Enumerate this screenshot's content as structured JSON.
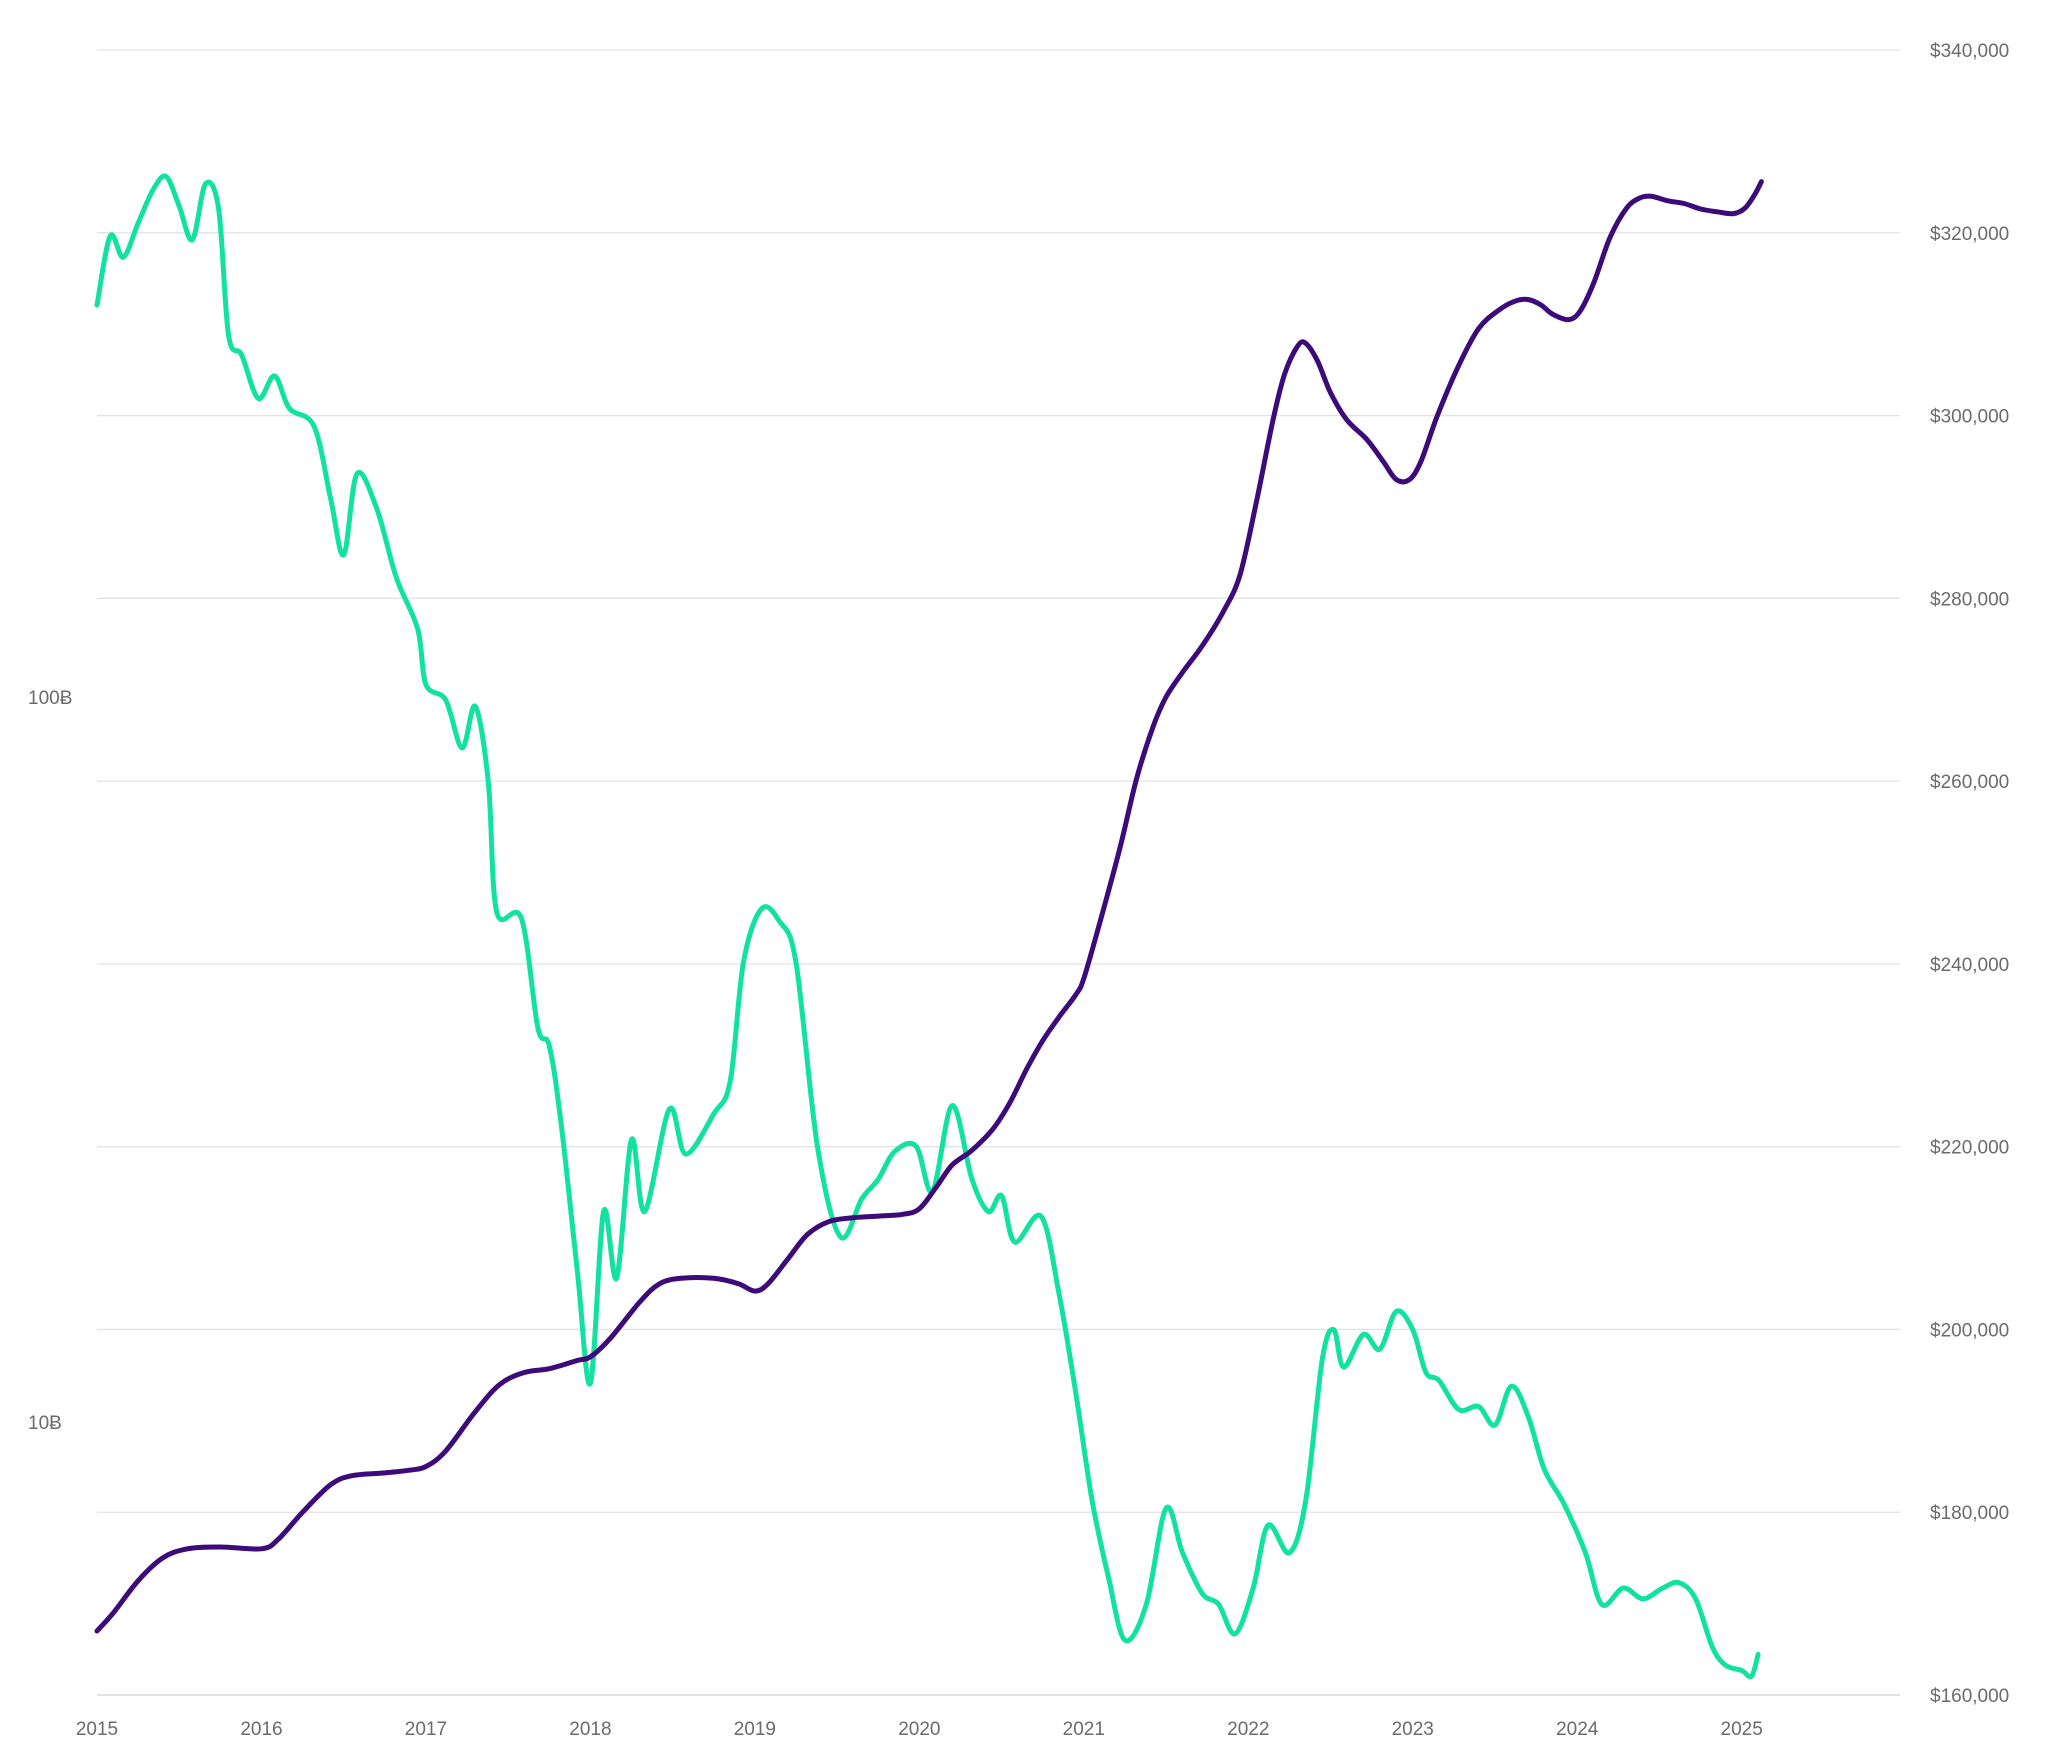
{
  "chart_data": {
    "type": "line",
    "grid": true,
    "legend": "none",
    "x_axis": {
      "range": [
        2015,
        2025.92
      ],
      "ticks": [
        {
          "value": 2015,
          "label": "2015"
        },
        {
          "value": 2016,
          "label": "2016"
        },
        {
          "value": 2017,
          "label": "2017"
        },
        {
          "value": 2018,
          "label": "2018"
        },
        {
          "value": 2019,
          "label": "2019"
        },
        {
          "value": 2020,
          "label": "2020"
        },
        {
          "value": 2021,
          "label": "2021"
        },
        {
          "value": 2022,
          "label": "2022"
        },
        {
          "value": 2023,
          "label": "2023"
        },
        {
          "value": 2024,
          "label": "2024"
        },
        {
          "value": 2025,
          "label": "2025"
        }
      ]
    },
    "y_left": {
      "scale": "log",
      "unit": "Ƀ",
      "range": [
        4.2,
        780
      ],
      "ticks": [
        {
          "value": 10,
          "label": "10Ƀ"
        },
        {
          "value": 100,
          "label": "100Ƀ"
        }
      ]
    },
    "y_right": {
      "scale": "linear",
      "range": [
        160000,
        340000
      ],
      "ticks": [
        {
          "value": 160000,
          "label": "$160,000"
        },
        {
          "value": 180000,
          "label": "$180,000"
        },
        {
          "value": 200000,
          "label": "$200,000"
        },
        {
          "value": 220000,
          "label": "$220,000"
        },
        {
          "value": 240000,
          "label": "$240,000"
        },
        {
          "value": 260000,
          "label": "$260,000"
        },
        {
          "value": 280000,
          "label": "$280,000"
        },
        {
          "value": 300000,
          "label": "$300,000"
        },
        {
          "value": 320000,
          "label": "$320,000"
        },
        {
          "value": 340000,
          "label": "$340,000"
        }
      ]
    },
    "series": [
      {
        "axis": "left",
        "color": "#12e29f",
        "points": [
          [
            2015.0,
            347
          ],
          [
            2015.08,
            432
          ],
          [
            2015.16,
            404
          ],
          [
            2015.25,
            450
          ],
          [
            2015.34,
            500
          ],
          [
            2015.42,
            522
          ],
          [
            2015.5,
            475
          ],
          [
            2015.58,
            427
          ],
          [
            2015.66,
            510
          ],
          [
            2015.74,
            470
          ],
          [
            2015.8,
            315
          ],
          [
            2015.88,
            296
          ],
          [
            2015.98,
            258
          ],
          [
            2016.08,
            277
          ],
          [
            2016.17,
            250
          ],
          [
            2016.32,
            236
          ],
          [
            2016.42,
            188
          ],
          [
            2016.5,
            157
          ],
          [
            2016.58,
            203
          ],
          [
            2016.7,
            182
          ],
          [
            2016.82,
            146
          ],
          [
            2016.95,
            124
          ],
          [
            2017.0,
            104
          ],
          [
            2017.12,
            99
          ],
          [
            2017.22,
            85
          ],
          [
            2017.3,
            97
          ],
          [
            2017.38,
            76
          ],
          [
            2017.43,
            50.5
          ],
          [
            2017.58,
            49.5
          ],
          [
            2017.68,
            35
          ],
          [
            2017.75,
            33
          ],
          [
            2017.82,
            26
          ],
          [
            2017.92,
            16.2
          ],
          [
            2018.0,
            11.3
          ],
          [
            2018.08,
            19.5
          ],
          [
            2018.16,
            15.8
          ],
          [
            2018.25,
            24.5
          ],
          [
            2018.33,
            19.5
          ],
          [
            2018.48,
            27
          ],
          [
            2018.58,
            23.4
          ],
          [
            2018.75,
            26.6
          ],
          [
            2018.85,
            29.5
          ],
          [
            2018.93,
            43
          ],
          [
            2019.04,
            51
          ],
          [
            2019.15,
            49
          ],
          [
            2019.25,
            43
          ],
          [
            2019.38,
            24
          ],
          [
            2019.52,
            18
          ],
          [
            2019.65,
            20.3
          ],
          [
            2019.75,
            21.6
          ],
          [
            2019.85,
            23.6
          ],
          [
            2019.98,
            24
          ],
          [
            2020.08,
            20.8
          ],
          [
            2020.2,
            27.3
          ],
          [
            2020.32,
            21.6
          ],
          [
            2020.42,
            19.5
          ],
          [
            2020.5,
            20.5
          ],
          [
            2020.58,
            17.7
          ],
          [
            2020.74,
            19.2
          ],
          [
            2020.85,
            15
          ],
          [
            2020.95,
            11
          ],
          [
            2021.05,
            7.8
          ],
          [
            2021.15,
            6.1
          ],
          [
            2021.25,
            5.0
          ],
          [
            2021.38,
            5.6
          ],
          [
            2021.5,
            7.6
          ],
          [
            2021.6,
            6.6
          ],
          [
            2021.72,
            5.8
          ],
          [
            2021.82,
            5.6
          ],
          [
            2021.92,
            5.1
          ],
          [
            2022.03,
            5.9
          ],
          [
            2022.12,
            7.2
          ],
          [
            2022.25,
            6.6
          ],
          [
            2022.35,
            7.8
          ],
          [
            2022.45,
            12.2
          ],
          [
            2022.52,
            13.4
          ],
          [
            2022.58,
            11.9
          ],
          [
            2022.7,
            13.2
          ],
          [
            2022.8,
            12.6
          ],
          [
            2022.9,
            14.2
          ],
          [
            2023.0,
            13.4
          ],
          [
            2023.08,
            11.7
          ],
          [
            2023.16,
            11.4
          ],
          [
            2023.28,
            10.4
          ],
          [
            2023.4,
            10.5
          ],
          [
            2023.5,
            9.9
          ],
          [
            2023.6,
            11.2
          ],
          [
            2023.7,
            10.2
          ],
          [
            2023.8,
            8.6
          ],
          [
            2023.92,
            7.7
          ],
          [
            2024.05,
            6.6
          ],
          [
            2024.15,
            5.6
          ],
          [
            2024.28,
            5.9
          ],
          [
            2024.4,
            5.7
          ],
          [
            2024.52,
            5.9
          ],
          [
            2024.62,
            6.0
          ],
          [
            2024.72,
            5.7
          ],
          [
            2024.82,
            4.9
          ],
          [
            2024.9,
            4.62
          ],
          [
            2025.0,
            4.54
          ],
          [
            2025.06,
            4.46
          ],
          [
            2025.1,
            4.78
          ]
        ]
      },
      {
        "axis": "right",
        "color": "#3d0a7a",
        "points": [
          [
            2015.0,
            167000
          ],
          [
            2015.1,
            169000
          ],
          [
            2015.25,
            172500
          ],
          [
            2015.4,
            175000
          ],
          [
            2015.55,
            176000
          ],
          [
            2015.75,
            176200
          ],
          [
            2016.0,
            176000
          ],
          [
            2016.1,
            177000
          ],
          [
            2016.25,
            180000
          ],
          [
            2016.42,
            183000
          ],
          [
            2016.55,
            184000
          ],
          [
            2016.75,
            184300
          ],
          [
            2016.9,
            184600
          ],
          [
            2017.0,
            185000
          ],
          [
            2017.12,
            186700
          ],
          [
            2017.3,
            191000
          ],
          [
            2017.45,
            194000
          ],
          [
            2017.6,
            195300
          ],
          [
            2017.75,
            195700
          ],
          [
            2017.92,
            196600
          ],
          [
            2018.0,
            197000
          ],
          [
            2018.12,
            199000
          ],
          [
            2018.3,
            203000
          ],
          [
            2018.42,
            205000
          ],
          [
            2018.55,
            205600
          ],
          [
            2018.75,
            205600
          ],
          [
            2018.9,
            205000
          ],
          [
            2019.0,
            204200
          ],
          [
            2019.08,
            205000
          ],
          [
            2019.2,
            207700
          ],
          [
            2019.32,
            210400
          ],
          [
            2019.45,
            211800
          ],
          [
            2019.58,
            212200
          ],
          [
            2019.75,
            212400
          ],
          [
            2019.9,
            212600
          ],
          [
            2020.0,
            213200
          ],
          [
            2020.1,
            215500
          ],
          [
            2020.2,
            218000
          ],
          [
            2020.32,
            219600
          ],
          [
            2020.45,
            222000
          ],
          [
            2020.55,
            224800
          ],
          [
            2020.65,
            228400
          ],
          [
            2020.75,
            231600
          ],
          [
            2020.85,
            234200
          ],
          [
            2020.95,
            236600
          ],
          [
            2021.0,
            238400
          ],
          [
            2021.1,
            244700
          ],
          [
            2021.22,
            252700
          ],
          [
            2021.32,
            260200
          ],
          [
            2021.42,
            265900
          ],
          [
            2021.5,
            269200
          ],
          [
            2021.6,
            271900
          ],
          [
            2021.72,
            274800
          ],
          [
            2021.85,
            278600
          ],
          [
            2021.95,
            282600
          ],
          [
            2022.05,
            290600
          ],
          [
            2022.15,
            299500
          ],
          [
            2022.22,
            304500
          ],
          [
            2022.3,
            307600
          ],
          [
            2022.35,
            307900
          ],
          [
            2022.42,
            306000
          ],
          [
            2022.5,
            302500
          ],
          [
            2022.6,
            299500
          ],
          [
            2022.72,
            297400
          ],
          [
            2022.82,
            295000
          ],
          [
            2022.9,
            293000
          ],
          [
            2022.98,
            293000
          ],
          [
            2023.05,
            295000
          ],
          [
            2023.15,
            300000
          ],
          [
            2023.28,
            305500
          ],
          [
            2023.4,
            309500
          ],
          [
            2023.52,
            311500
          ],
          [
            2023.62,
            312500
          ],
          [
            2023.7,
            312700
          ],
          [
            2023.78,
            312100
          ],
          [
            2023.85,
            311100
          ],
          [
            2023.95,
            310500
          ],
          [
            2024.02,
            311500
          ],
          [
            2024.1,
            314500
          ],
          [
            2024.2,
            319500
          ],
          [
            2024.3,
            322700
          ],
          [
            2024.38,
            323800
          ],
          [
            2024.45,
            324000
          ],
          [
            2024.55,
            323500
          ],
          [
            2024.65,
            323200
          ],
          [
            2024.75,
            322600
          ],
          [
            2024.85,
            322300
          ],
          [
            2024.95,
            322100
          ],
          [
            2025.02,
            322700
          ],
          [
            2025.08,
            324200
          ],
          [
            2025.12,
            325600
          ]
        ]
      }
    ]
  }
}
